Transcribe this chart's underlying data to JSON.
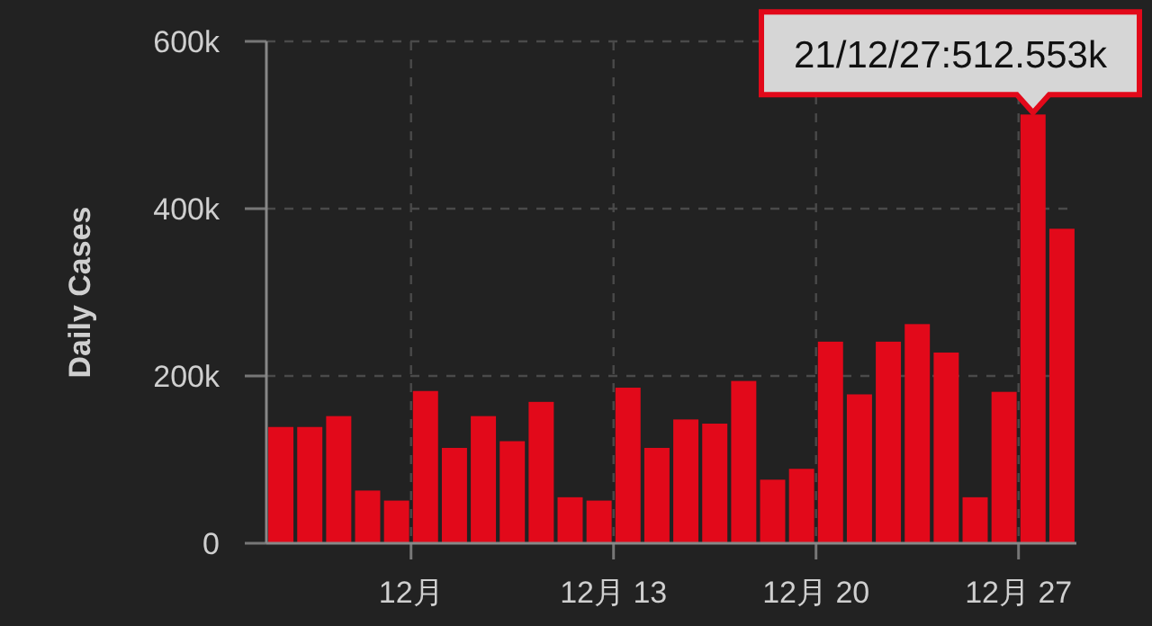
{
  "chart_data": {
    "type": "bar",
    "ylabel": "Daily Cases",
    "color": "#e2091a",
    "x": [
      "--12-01T12:00",
      "--12-02T12:00",
      "--12-03T12:00",
      "--12-04T12:00",
      "--12-05T12:00",
      "--12-06T12:00",
      "--12-07T12:00",
      "--12-08T12:00",
      "--12-09T12:00",
      "--12-10T12:00",
      "--12-11T12:00",
      "--12-12T12:00",
      "--12-13T12:00",
      "--12-14T12:00",
      "--12-15T12:00",
      "--12-16T12:00",
      "--12-17T12:00",
      "--12-18T12:00",
      "--12-19T12:00",
      "--12-20T12:00",
      "--12-21T12:00",
      "--12-22T12:00",
      "--12-23T12:00",
      "--12-24T12:00",
      "--12-25T12:00",
      "--12-26T12:00",
      "--12-27T12:00",
      "--12-28T12:00"
    ],
    "values": [
      139000,
      139000,
      152000,
      63000,
      51000,
      182000,
      114000,
      152000,
      122000,
      169000,
      55000,
      51000,
      186000,
      114000,
      148000,
      143000,
      194000,
      76000,
      89000,
      241000,
      178000,
      241000,
      262000,
      228000,
      55000,
      181000,
      512553,
      376000
    ],
    "xlim": [
      "--12-01",
      "--12-29"
    ],
    "xticks": [
      {
        "value": "--12-06",
        "label": "12月"
      },
      {
        "value": "--12-13",
        "label": "12月 13"
      },
      {
        "value": "--12-20",
        "label": "12月 20"
      },
      {
        "value": "--12-27",
        "label": "12月 27"
      }
    ],
    "ylim": [
      0,
      600000
    ],
    "yticks": [
      0,
      {
        "value": 200000,
        "label": "200k"
      },
      {
        "value": 400000,
        "label": "400k"
      },
      {
        "value": 600000,
        "label": "600k"
      }
    ],
    "grid": true,
    "annotations": [
      {
        "text": "21/12/27:512.553k",
        "x": "--12-27T12:00",
        "y": 512553
      }
    ]
  }
}
